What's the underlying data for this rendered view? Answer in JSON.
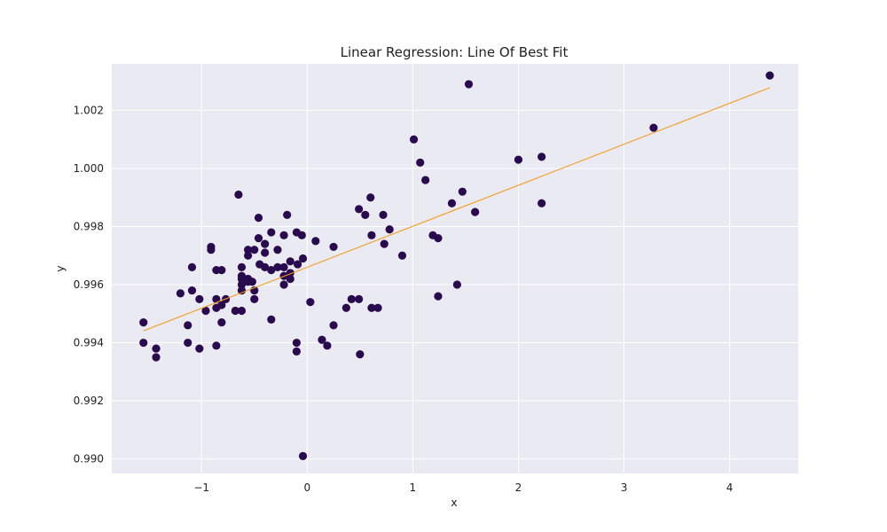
{
  "chart_data": {
    "type": "scatter",
    "title": "Linear Regression: Line Of Best Fit",
    "xlabel": "x",
    "ylabel": "y",
    "xlim": [
      -1.85,
      4.65
    ],
    "ylim": [
      0.9895,
      1.0036
    ],
    "x_ticks": [
      -1,
      0,
      1,
      2,
      3,
      4
    ],
    "x_tick_labels": [
      "−1",
      "0",
      "1",
      "2",
      "3",
      "4"
    ],
    "y_ticks": [
      0.99,
      0.992,
      0.994,
      0.996,
      0.998,
      1.0,
      1.002
    ],
    "y_tick_labels": [
      "0.990",
      "0.992",
      "0.994",
      "0.996",
      "0.998",
      "1.000",
      "1.002"
    ],
    "grid": true,
    "colors": {
      "background": "#eaeaf2",
      "grid": "#ffffff",
      "points": "#2a0a4e",
      "line": "#f39c1e"
    },
    "series": [
      {
        "type": "scatter",
        "x": [
          -1.55,
          -1.55,
          -1.43,
          -1.43,
          -1.13,
          -1.13,
          -1.2,
          -1.09,
          -1.09,
          -1.02,
          -1.02,
          -0.96,
          -0.91,
          -0.91,
          -0.86,
          -0.86,
          -0.86,
          -0.86,
          -0.81,
          -0.81,
          -0.81,
          -0.77,
          -0.68,
          -0.65,
          -0.62,
          -0.62,
          -0.62,
          -0.62,
          -0.62,
          -0.62,
          -0.56,
          -0.56,
          -0.56,
          -0.56,
          -0.52,
          -0.5,
          -0.5,
          -0.5,
          -0.46,
          -0.46,
          -0.45,
          -0.4,
          -0.4,
          -0.4,
          -0.34,
          -0.34,
          -0.34,
          -0.28,
          -0.28,
          -0.22,
          -0.22,
          -0.22,
          -0.22,
          -0.19,
          -0.16,
          -0.16,
          -0.16,
          -0.1,
          -0.1,
          -0.1,
          -0.09,
          -0.05,
          -0.04,
          -0.04,
          0.03,
          0.08,
          0.14,
          0.19,
          0.25,
          0.25,
          0.37,
          0.42,
          0.49,
          0.49,
          0.5,
          0.55,
          0.6,
          0.61,
          0.61,
          0.67,
          0.72,
          0.73,
          0.78,
          0.9,
          1.01,
          1.07,
          1.12,
          1.19,
          1.24,
          1.24,
          1.37,
          1.42,
          1.47,
          1.53,
          1.59,
          2.0,
          2.22,
          2.22,
          3.28,
          4.38
        ],
        "y": [
          0.9947,
          0.994,
          0.9938,
          0.9935,
          0.9946,
          0.994,
          0.9957,
          0.9966,
          0.9958,
          0.9955,
          0.9938,
          0.9951,
          0.9973,
          0.9972,
          0.9965,
          0.9955,
          0.9952,
          0.9939,
          0.9965,
          0.9953,
          0.9947,
          0.9955,
          0.9951,
          0.9991,
          0.9966,
          0.9963,
          0.9962,
          0.996,
          0.9958,
          0.9951,
          0.9972,
          0.997,
          0.9962,
          0.9961,
          0.9961,
          0.9972,
          0.9958,
          0.9955,
          0.9983,
          0.9976,
          0.9967,
          0.9974,
          0.9971,
          0.9966,
          0.9978,
          0.9965,
          0.9948,
          0.9972,
          0.9966,
          0.9977,
          0.9966,
          0.9963,
          0.996,
          0.9984,
          0.9968,
          0.9964,
          0.9962,
          0.9978,
          0.994,
          0.9937,
          0.9967,
          0.9977,
          0.9969,
          0.9901,
          0.9954,
          0.9975,
          0.9941,
          0.9939,
          0.9973,
          0.9946,
          0.9952,
          0.9955,
          0.9986,
          0.9955,
          0.9936,
          0.9984,
          0.999,
          0.9977,
          0.9952,
          0.9952,
          0.9984,
          0.9974,
          0.9979,
          0.997,
          1.001,
          1.0002,
          0.9996,
          0.9977,
          0.9976,
          0.9956,
          0.9988,
          0.996,
          0.9992,
          1.0029,
          0.9985,
          1.0003,
          1.0004,
          0.9988,
          1.0014,
          1.0032
        ]
      },
      {
        "type": "line",
        "x": [
          -1.55,
          4.38
        ],
        "y": [
          0.99441,
          1.00278
        ]
      }
    ]
  }
}
